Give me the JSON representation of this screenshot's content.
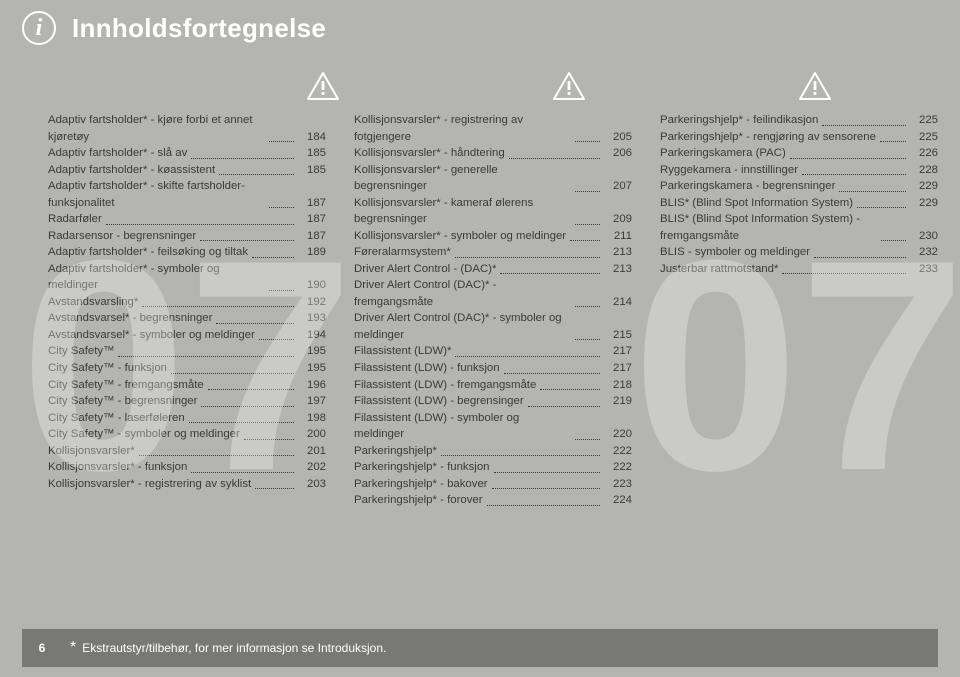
{
  "header": {
    "title": "Innholdsfortegnelse",
    "info_glyph": "i"
  },
  "footer": {
    "page_number": "6",
    "star": "*",
    "note": "Ekstrautstyr/tilbehør, for mer informasjon se Introduksjon."
  },
  "watermark": {
    "col1": "07",
    "col3": "07"
  },
  "columns": [
    [
      {
        "label": "Adaptiv fartsholder* - kjøre forbi et annet kjøretøy",
        "pg": "184"
      },
      {
        "label": "Adaptiv fartsholder* - slå av",
        "pg": "185"
      },
      {
        "label": "Adaptiv fartsholder* - køassistent",
        "pg": "185"
      },
      {
        "label": "Adaptiv fartsholder* - skifte fartsholder-funksjonalitet",
        "pg": "187"
      },
      {
        "label": "Radarføler",
        "pg": "187"
      },
      {
        "label": "Radarsensor - begrensninger",
        "pg": "187"
      },
      {
        "label": "Adaptiv fartsholder* - feilsøking og tiltak",
        "pg": "189"
      },
      {
        "label": "Adaptiv fartsholder* - symboler og meldinger",
        "pg": "190"
      },
      {
        "label": "Avstandsvarsling*",
        "pg": "192"
      },
      {
        "label": "Avstandsvarsel* - begrensninger",
        "pg": "193"
      },
      {
        "label": "Avstandsvarsel* - symboler og meldinger",
        "pg": "194"
      },
      {
        "label": "City Safety™",
        "pg": "195"
      },
      {
        "label": "City Safety™ - funksjon",
        "pg": "195"
      },
      {
        "label": "City Safety™ - fremgangsmåte",
        "pg": "196"
      },
      {
        "label": "City Safety™ - begrensninger",
        "pg": "197"
      },
      {
        "label": "City Safety™ - laserføleren",
        "pg": "198"
      },
      {
        "label": "City Safety™ - symboler og meldinger",
        "pg": "200"
      },
      {
        "label": "Kollisjonsvarsler*",
        "pg": "201"
      },
      {
        "label": "Kollisjonsvarsler* - funksjon",
        "pg": "202"
      },
      {
        "label": "Kollisjonsvarsler* - registrering av syklist",
        "pg": "203"
      }
    ],
    [
      {
        "label": "Kollisjonsvarsler* - registrering av fotgjengere",
        "pg": "205"
      },
      {
        "label": "Kollisjonsvarsler* - håndtering",
        "pg": "206"
      },
      {
        "label": "Kollisjonsvarsler* - generelle begrensninger",
        "pg": "207"
      },
      {
        "label": "Kollisjonsvarsler* - kameraf ølerens begrensninger",
        "pg": "209"
      },
      {
        "label": "Kollisjonsvarsler* - symboler og meldinger",
        "pg": "211"
      },
      {
        "label": "Føreralarmsystem*",
        "pg": "213"
      },
      {
        "label": "Driver Alert Control - (DAC)*",
        "pg": "213"
      },
      {
        "label": "Driver Alert Control (DAC)* - fremgangsmåte",
        "pg": "214"
      },
      {
        "label": "Driver Alert Control (DAC)* - symboler og meldinger",
        "pg": "215"
      },
      {
        "label": "Filassistent (LDW)*",
        "pg": "217"
      },
      {
        "label": "Filassistent (LDW) - funksjon",
        "pg": "217"
      },
      {
        "label": "Filassistent (LDW) - fremgangsmåte",
        "pg": "218"
      },
      {
        "label": "Filassistent (LDW) - begrensinger",
        "pg": "219"
      },
      {
        "label": "Filassistent (LDW) - symboler og meldinger",
        "pg": "220"
      },
      {
        "label": "Parkeringshjelp*",
        "pg": "222"
      },
      {
        "label": "Parkeringshjelp* - funksjon",
        "pg": "222"
      },
      {
        "label": "Parkeringshjelp* - bakover",
        "pg": "223"
      },
      {
        "label": "Parkeringshjelp* - forover",
        "pg": "224"
      }
    ],
    [
      {
        "label": "Parkeringshjelp* - feilindikasjon",
        "pg": "225"
      },
      {
        "label": "Parkeringshjelp* - rengjøring av sensorene",
        "pg": "225"
      },
      {
        "label": "Parkeringskamera (PAC)",
        "pg": "226"
      },
      {
        "label": "Ryggekamera - innstillinger",
        "pg": "228"
      },
      {
        "label": "Parkeringskamera - begrensninger",
        "pg": "229"
      },
      {
        "label": "BLIS* (Blind Spot Information System)",
        "pg": "229"
      },
      {
        "label": "BLIS* (Blind Spot Information System) - fremgangsmåte",
        "pg": "230"
      },
      {
        "label": "BLIS - symboler og meldinger",
        "pg": "232"
      },
      {
        "label": "Justerbar rattmotstand*",
        "pg": "233"
      }
    ]
  ]
}
